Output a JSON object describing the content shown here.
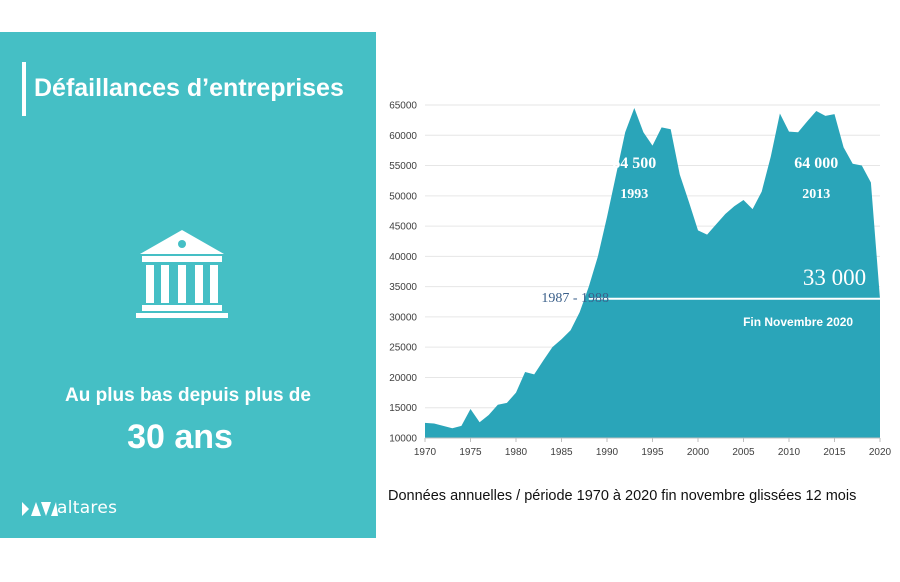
{
  "panel": {
    "title": "Défaillances d’entreprises",
    "subtitle": "Au plus bas depuis plus de",
    "highlight": "30 ans",
    "logo_text": "altares",
    "color": "#45bfc5"
  },
  "caption": "Données annuelles / période 1970 à 2020 fin novembre glissées 12 mois",
  "chart_data": {
    "type": "area",
    "x": [
      1970,
      1971,
      1972,
      1973,
      1974,
      1975,
      1976,
      1977,
      1978,
      1979,
      1980,
      1981,
      1982,
      1983,
      1984,
      1985,
      1986,
      1987,
      1988,
      1989,
      1990,
      1991,
      1992,
      1993,
      1994,
      1995,
      1996,
      1997,
      1998,
      1999,
      2000,
      2001,
      2002,
      2003,
      2004,
      2005,
      2006,
      2007,
      2008,
      2009,
      2010,
      2011,
      2012,
      2013,
      2014,
      2015,
      2016,
      2017,
      2018,
      2019,
      2020
    ],
    "series": [
      {
        "values": [
          12500,
          12400,
          12000,
          11600,
          12000,
          14800,
          12600,
          13800,
          15500,
          15800,
          17500,
          20900,
          20500,
          22800,
          25000,
          26300,
          27800,
          30800,
          35000,
          40000,
          46500,
          53500,
          60500,
          64500,
          60500,
          58300,
          61300,
          61000,
          53500,
          49000,
          44300,
          43600,
          45300,
          47000,
          48300,
          49300,
          47800,
          50700,
          56500,
          63600,
          60600,
          60500,
          62300,
          64000,
          63200,
          63500,
          58000,
          55300,
          55000,
          52200,
          33000
        ],
        "color": "#2aa5b9"
      }
    ],
    "xlim": [
      1970,
      2020
    ],
    "ylim": [
      10000,
      65000
    ],
    "x_ticks": [
      1970,
      1975,
      1980,
      1985,
      1990,
      1995,
      2000,
      2005,
      2010,
      2015,
      2020
    ],
    "y_ticks": [
      10000,
      15000,
      20000,
      25000,
      30000,
      35000,
      40000,
      45000,
      50000,
      55000,
      60000,
      65000
    ],
    "grid": true,
    "reference_line": {
      "value": 33000,
      "from": 1988,
      "to": 2020
    },
    "annotations": {
      "peak_1993_value": "64 500",
      "peak_1993_year": "1993",
      "peak_2013_value": "64 000",
      "peak_2013_year": "2013",
      "period_label": "1987 - 1988",
      "current_value": "33 000",
      "current_label": "Fin Novembre 2020"
    }
  }
}
